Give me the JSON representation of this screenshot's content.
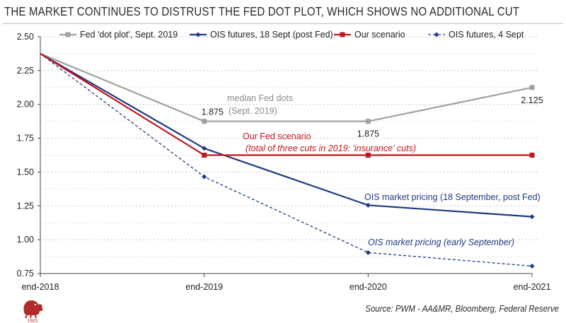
{
  "title": "THE MARKET CONTINUES TO DISTRUST THE FED DOT PLOT, WHICH SHOWS NO ADDITIONAL CUT",
  "source": "Source: PWM - AA&MR, Bloomberg, Federal Reserve",
  "logo_year": "1805",
  "colors": {
    "dots": "#a0a0a0",
    "ois18": "#1f3a80",
    "ours": "#c0161f",
    "ois4": "#1f3a80",
    "grid": "#c8c8c8"
  },
  "chart_data": {
    "type": "line",
    "categories": [
      "end-2018",
      "end-2019",
      "end-2020",
      "end-2021"
    ],
    "ylim": [
      0.75,
      2.5
    ],
    "yticks": [
      "2.50",
      "2.25",
      "2.00",
      "1.75",
      "1.50",
      "1.25",
      "1.00",
      "0.75"
    ],
    "ytick_values": [
      2.5,
      2.25,
      2.0,
      1.75,
      1.5,
      1.25,
      1.0,
      0.75
    ],
    "grid": "horizontal dotted",
    "legend_position": "top",
    "series": [
      {
        "name": "Fed 'dot plot', Sept. 2019",
        "values": [
          2.375,
          1.875,
          1.875,
          2.125
        ],
        "color": "#a0a0a0",
        "marker": "square",
        "dash": "solid"
      },
      {
        "name": "OIS futures, 18 Sept (post Fed)",
        "values": [
          2.375,
          1.675,
          1.255,
          1.17
        ],
        "color": "#1f3a80",
        "marker": "diamond",
        "dash": "solid"
      },
      {
        "name": "Our scenario",
        "values": [
          2.375,
          1.625,
          1.625,
          1.625
        ],
        "color": "#c0161f",
        "marker": "square",
        "dash": "solid"
      },
      {
        "name": "OIS futures, 4 Sept",
        "values": [
          2.375,
          1.465,
          0.905,
          0.805
        ],
        "color": "#1f3a80",
        "marker": "diamond",
        "dash": "dashed"
      }
    ],
    "data_labels": [
      "1.875",
      "1.875",
      "2.125"
    ],
    "annotations": [
      {
        "text": "median Fed dots",
        "color": "#8a8a8a",
        "italic": false
      },
      {
        "text": "(Sept. 2019)",
        "color": "#8a8a8a",
        "italic": false
      },
      {
        "text": "Our Fed scenario",
        "color": "#c0161f",
        "italic": false
      },
      {
        "text": "(total of three cuts in 2019: 'insurance' cuts)",
        "color": "#c0161f",
        "italic": true
      },
      {
        "text": "OIS market pricing (18 September, post Fed)",
        "color": "#1f3a80",
        "italic": false
      },
      {
        "text": "OIS market pricing (early September)",
        "color": "#1f3a80",
        "italic": true
      }
    ]
  }
}
